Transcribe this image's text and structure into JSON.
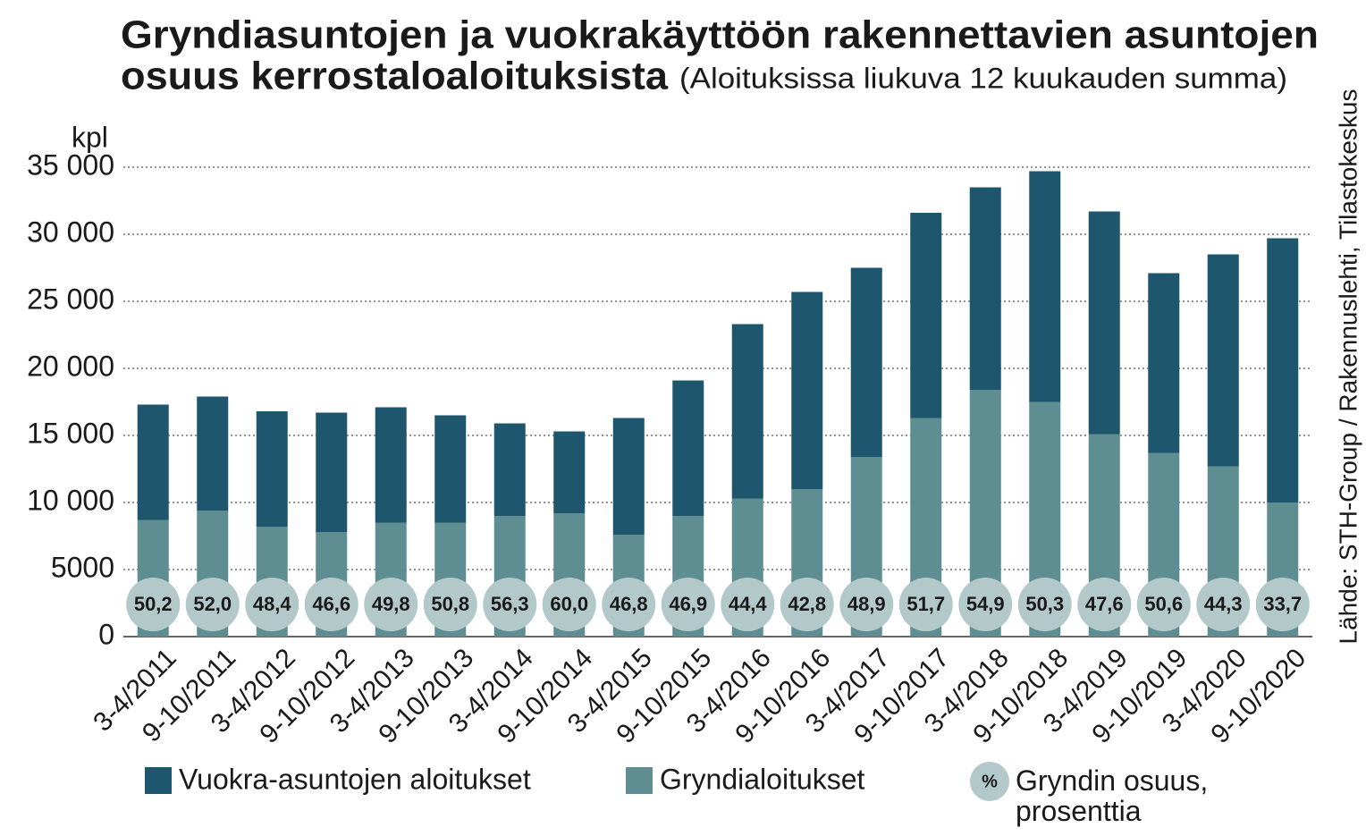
{
  "chart_data": {
    "type": "stacked_bar",
    "title": [
      "Gryndiasuntojen ja vuokrakäyttöön rakennettavien asuntojen",
      "osuus kerrostaloaloituksista"
    ],
    "subtitle": "(Aloituksissa liukuva 12 kuukauden summa)",
    "y_unit": "kpl",
    "source": "Lähde: STH-Group / Rakennuslehti, Tilastokeskus",
    "categories": [
      "3-4/2011",
      "9-10/2011",
      "3-4/2012",
      "9-10/2012",
      "3-4/2013",
      "9-10/2013",
      "3-4/2014",
      "9-10/2014",
      "3-4/2015",
      "9-10/2015",
      "3-4/2016",
      "9-10/2016",
      "3-4/2017",
      "9-10/2017",
      "3-4/2018",
      "9-10/2018",
      "3-4/2019",
      "9-10/2019",
      "3-4/2020",
      "9-10/2020"
    ],
    "series": [
      {
        "name": "Gryndialoitukset",
        "color": "#5e8e91",
        "values": [
          8700,
          9400,
          8200,
          7800,
          8500,
          8500,
          9000,
          9200,
          7600,
          9000,
          10300,
          11000,
          13400,
          16300,
          18400,
          17500,
          15100,
          13700,
          12700,
          10000
        ]
      },
      {
        "name": "Vuokra-asuntojen aloitukset",
        "color": "#1d566d",
        "values": [
          8600,
          8500,
          8600,
          8900,
          8600,
          8000,
          6900,
          6100,
          8700,
          10100,
          13000,
          14700,
          14100,
          15300,
          15100,
          17200,
          16600,
          13400,
          15800,
          19700
        ]
      },
      {
        "name": "Gryndin osuus, prosenttia",
        "color": "#b3c9c9",
        "legend_symbol": "%",
        "values": [
          50.2,
          52.0,
          48.4,
          46.6,
          49.8,
          50.8,
          56.3,
          60.0,
          46.8,
          46.9,
          44.4,
          42.8,
          48.9,
          51.7,
          54.9,
          50.3,
          47.6,
          50.6,
          44.3,
          33.7
        ],
        "value_labels": [
          "50,2",
          "52,0",
          "48,4",
          "46,6",
          "49,8",
          "50,8",
          "56,3",
          "60,0",
          "46,8",
          "46,9",
          "44,4",
          "42,8",
          "48,9",
          "51,7",
          "54,9",
          "50,3",
          "47,6",
          "50,6",
          "44,3",
          "33,7"
        ]
      }
    ],
    "ylim": [
      0,
      35000
    ],
    "yticks": [
      0,
      5000,
      {
        "value": 10000,
        "label": "10 000"
      },
      {
        "value": 15000,
        "label": "15 000"
      },
      {
        "value": 20000,
        "label": "20 000"
      },
      {
        "value": 25000,
        "label": "25 000"
      },
      {
        "value": 30000,
        "label": "30 000"
      },
      {
        "value": 35000,
        "label": "35 000"
      }
    ],
    "grid": true
  }
}
